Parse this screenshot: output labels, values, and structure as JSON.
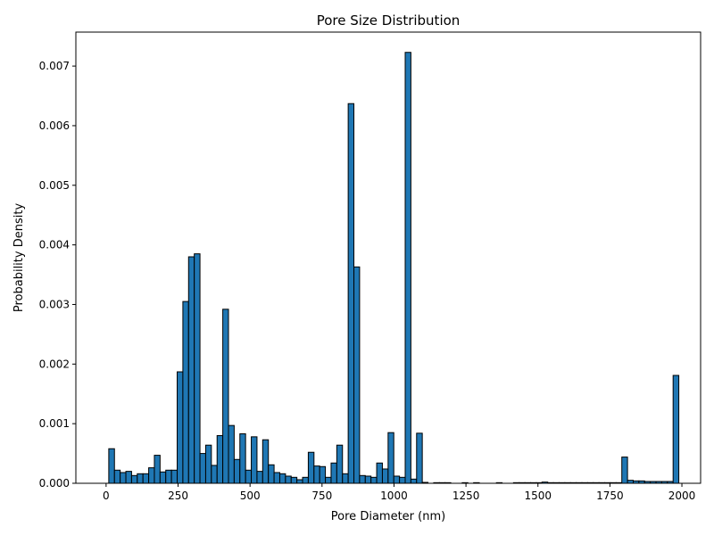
{
  "chart_data": {
    "type": "bar",
    "title": "Pore Size Distribution",
    "xlabel": "Pore Diameter (nm)",
    "ylabel": "Probability Density",
    "xlim": [
      -105,
      2065
    ],
    "ylim": [
      0,
      0.00757
    ],
    "xticks": [
      0,
      250,
      500,
      750,
      1000,
      1250,
      1500,
      1750,
      2000
    ],
    "yticks": [
      0,
      0.001,
      0.002,
      0.003,
      0.004,
      0.005,
      0.006,
      0.007
    ],
    "xtick_labels": [
      "0",
      "250",
      "500",
      "750",
      "1000",
      "1250",
      "1500",
      "1750",
      "2000"
    ],
    "ytick_labels": [
      "0.000",
      "0.001",
      "0.002",
      "0.003",
      "0.004",
      "0.005",
      "0.006",
      "0.007"
    ],
    "bar_color": "#1f77b4",
    "edge_color": "#000000",
    "grid": false,
    "bin_start": 9.3,
    "bin_width": 19.8,
    "values": [
      0.00058,
      0.00022,
      0.00018,
      0.0002,
      0.00013,
      0.00016,
      0.00016,
      0.00026,
      0.00047,
      0.00019,
      0.00022,
      0.00022,
      0.00187,
      0.00305,
      0.0038,
      0.00385,
      0.0005,
      0.00064,
      0.0003,
      0.0008,
      0.00292,
      0.00097,
      0.0004,
      0.00083,
      0.00022,
      0.00078,
      0.0002,
      0.00073,
      0.00031,
      0.00018,
      0.00016,
      0.00012,
      0.0001,
      6e-05,
      0.0001,
      0.00052,
      0.00029,
      0.00028,
      0.0001,
      0.00034,
      0.00064,
      0.00016,
      0.00637,
      0.00363,
      0.00013,
      0.00012,
      0.0001,
      0.00034,
      0.00024,
      0.00085,
      0.00012,
      0.0001,
      0.00723,
      7e-05,
      0.00084,
      1.5e-05,
      0,
      1e-05,
      1e-05,
      1e-05,
      0,
      0,
      1e-05,
      0,
      1e-05,
      0,
      0,
      0,
      1e-05,
      0,
      0,
      1e-05,
      1e-05,
      1e-05,
      1e-05,
      1e-05,
      2e-05,
      1e-05,
      1e-05,
      1e-05,
      1e-05,
      1e-05,
      1e-05,
      1e-05,
      1e-05,
      1e-05,
      1e-05,
      1e-05,
      1e-05,
      1e-05,
      0.00044,
      5e-05,
      4e-05,
      4e-05,
      3e-05,
      3e-05,
      3e-05,
      3e-05,
      3e-05,
      0.00181
    ]
  }
}
